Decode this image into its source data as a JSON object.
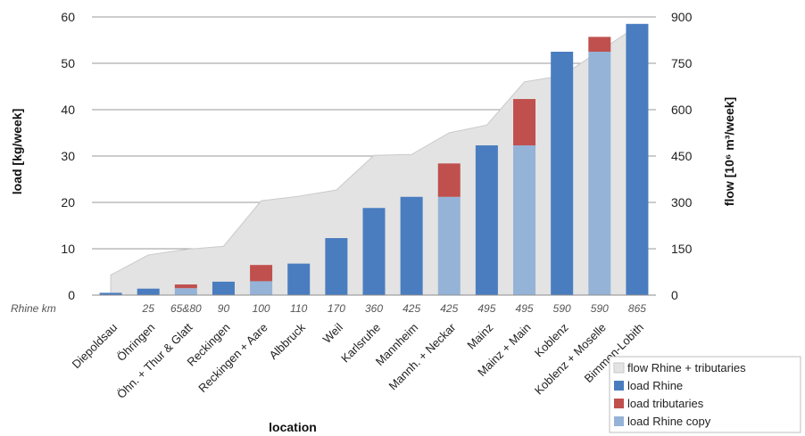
{
  "chart_data": {
    "type": "bar",
    "title": "",
    "xlabel": "location",
    "ylabel_left": "load  [kg/week]",
    "ylabel_right": "flow [10⁶ m³/week]",
    "ylim_left": [
      0,
      60
    ],
    "ylim_right": [
      0,
      900
    ],
    "yticks_left": [
      "0",
      "10",
      "20",
      "30",
      "40",
      "50",
      "60"
    ],
    "yticks_right": [
      "0",
      "150",
      "300",
      "450",
      "600",
      "750",
      "900"
    ],
    "grid": true,
    "legend_position": "bottom-right",
    "km_label": "Rhine km",
    "categories": [
      "Diepoldsau",
      "Öhringen",
      "Öhn. + Thur & Glatt",
      "Reckingen",
      "Reckingen + Aare",
      "Albbruck",
      "Weil",
      "Karlsruhe",
      "Mannheim",
      "Mannh. + Neckar",
      "Mainz",
      "Mainz + Main",
      "Koblenz",
      "Koblenz + Moselle",
      "Bimmen-Lobith"
    ],
    "rhine_km": [
      "",
      "25",
      "65&80",
      "90",
      "100",
      "110",
      "170",
      "360",
      "425",
      "425",
      "495",
      "495",
      "590",
      "590",
      "865"
    ],
    "series": [
      {
        "name": "flow Rhine + tributaries",
        "chart": "area",
        "axis": "right",
        "color": "#e3e3e3",
        "values": [
          65,
          130,
          148,
          158,
          305,
          320,
          340,
          452,
          455,
          525,
          550,
          690,
          710,
          790,
          870
        ]
      },
      {
        "name": "load Rhine",
        "chart": "bar",
        "axis": "left",
        "color": "#4a7dbf",
        "values": [
          0.5,
          1.4,
          0,
          2.9,
          0,
          6.8,
          12.3,
          18.8,
          21.2,
          0,
          32.3,
          0,
          52.5,
          0,
          58.5
        ]
      },
      {
        "name": "load tributaries",
        "chart": "bar",
        "axis": "left",
        "color": "#c0504d",
        "values": [
          0,
          0,
          0.8,
          0,
          3.5,
          0,
          0,
          0,
          0,
          7.2,
          0,
          10,
          0,
          3.2,
          0
        ]
      },
      {
        "name": "load Rhine copy",
        "chart": "bar",
        "axis": "left",
        "color": "#95b3d7",
        "values": [
          0,
          0,
          1.5,
          0,
          3.0,
          0,
          0,
          0,
          0,
          21.2,
          0,
          32.3,
          0,
          52.5,
          0
        ]
      }
    ]
  }
}
